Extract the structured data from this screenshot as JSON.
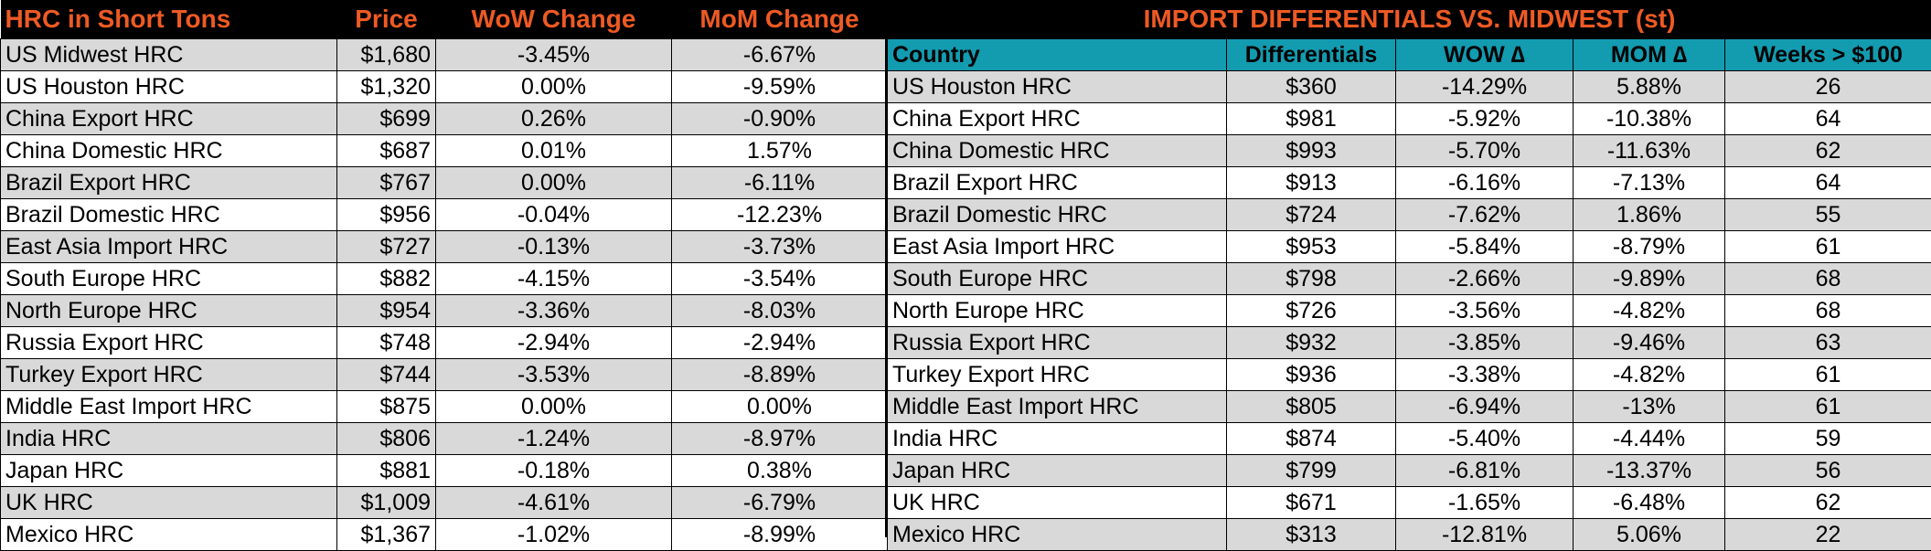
{
  "left": {
    "headers": [
      "HRC in Short Tons",
      "Price",
      "WoW Change",
      "MoM Change"
    ],
    "rows": [
      [
        "US Midwest HRC",
        "$1,680",
        "-3.45%",
        "-6.67%"
      ],
      [
        "US Houston HRC",
        "$1,320",
        "0.00%",
        "-9.59%"
      ],
      [
        "China Export HRC",
        "$699",
        "0.26%",
        "-0.90%"
      ],
      [
        "China Domestic HRC",
        "$687",
        "0.01%",
        "1.57%"
      ],
      [
        "Brazil Export HRC",
        "$767",
        "0.00%",
        "-6.11%"
      ],
      [
        "Brazil Domestic HRC",
        "$956",
        "-0.04%",
        "-12.23%"
      ],
      [
        "East Asia Import HRC",
        "$727",
        "-0.13%",
        "-3.73%"
      ],
      [
        "South Europe HRC",
        "$882",
        "-4.15%",
        "-3.54%"
      ],
      [
        "North Europe HRC",
        "$954",
        "-3.36%",
        "-8.03%"
      ],
      [
        "Russia Export HRC",
        "$748",
        "-2.94%",
        "-2.94%"
      ],
      [
        "Turkey Export HRC",
        "$744",
        "-3.53%",
        "-8.89%"
      ],
      [
        "Middle East Import HRC",
        "$875",
        "0.00%",
        "0.00%"
      ],
      [
        "India HRC",
        "$806",
        "-1.24%",
        "-8.97%"
      ],
      [
        "Japan HRC",
        "$881",
        "-0.18%",
        "0.38%"
      ],
      [
        "UK HRC",
        "$1,009",
        "-4.61%",
        "-6.79%"
      ],
      [
        "Mexico HRC",
        "$1,367",
        "-1.02%",
        "-8.99%"
      ]
    ]
  },
  "right": {
    "title": "IMPORT DIFFERENTIALS VS. MIDWEST (st)",
    "headers": [
      "Country",
      "Differentials",
      "WOW ∆",
      "MOM ∆",
      "Weeks > $100"
    ],
    "rows": [
      [
        "US Houston HRC",
        "$360",
        "-14.29%",
        "5.88%",
        "26"
      ],
      [
        "China Export HRC",
        "$981",
        "-5.92%",
        "-10.38%",
        "64"
      ],
      [
        "China Domestic HRC",
        "$993",
        "-5.70%",
        "-11.63%",
        "62"
      ],
      [
        "Brazil Export HRC",
        "$913",
        "-6.16%",
        "-7.13%",
        "64"
      ],
      [
        "Brazil Domestic HRC",
        "$724",
        "-7.62%",
        "1.86%",
        "55"
      ],
      [
        "East Asia Import HRC",
        "$953",
        "-5.84%",
        "-8.79%",
        "61"
      ],
      [
        "South Europe HRC",
        "$798",
        "-2.66%",
        "-9.89%",
        "68"
      ],
      [
        "North Europe HRC",
        "$726",
        "-3.56%",
        "-4.82%",
        "68"
      ],
      [
        "Russia Export HRC",
        "$932",
        "-3.85%",
        "-9.46%",
        "63"
      ],
      [
        "Turkey Export HRC",
        "$936",
        "-3.38%",
        "-4.82%",
        "61"
      ],
      [
        "Middle East Import HRC",
        "$805",
        "-6.94%",
        "-13%",
        "61"
      ],
      [
        "India HRC",
        "$874",
        "-5.40%",
        "-4.44%",
        "59"
      ],
      [
        "Japan HRC",
        "$799",
        "-6.81%",
        "-13.37%",
        "56"
      ],
      [
        "UK HRC",
        "$671",
        "-1.65%",
        "-6.48%",
        "62"
      ],
      [
        "Mexico HRC",
        "$313",
        "-12.81%",
        "5.06%",
        "22"
      ]
    ]
  },
  "colors": {
    "header_bg": "#000000",
    "header_text": "#ee5a24",
    "subheader_bg": "#139bb0",
    "band": "#d9d9d9"
  }
}
